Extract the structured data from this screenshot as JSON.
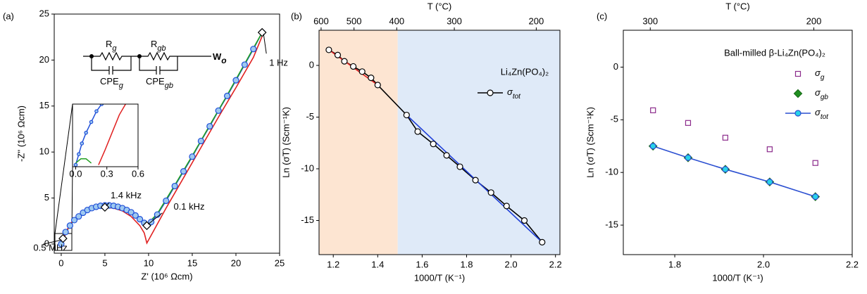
{
  "chart_data": [
    {
      "type": "scatter",
      "panel_label": "(a)",
      "x_label": "Z' (10⁶ Ωcm)",
      "y_label": "-Z'' (10⁶ Ωcm)",
      "xlim": [
        -0.8,
        25
      ],
      "ylim": [
        -1,
        25
      ],
      "xticks": [
        0,
        5,
        10,
        15,
        20,
        25
      ],
      "yticks": [
        0,
        5,
        10,
        15,
        20,
        25
      ],
      "circuit": [
        {
          "main": "R",
          "sub": "g"
        },
        {
          "main": "CPE",
          "sub": "g"
        },
        {
          "main": "R",
          "sub": "gb"
        },
        {
          "main": "CPE",
          "sub": "gb"
        },
        {
          "main": "W",
          "sub": "o"
        }
      ],
      "series": [
        {
          "color": "#1f4fd8",
          "fill": "#9ec9f0",
          "marker": "circle",
          "line": true,
          "x": [
            0,
            0.2,
            0.5,
            1,
            1.5,
            2,
            2.5,
            3,
            3.5,
            4,
            4.5,
            5,
            5.5,
            6,
            6.5,
            7,
            7.5,
            8,
            8.5,
            9,
            9.5,
            9.8,
            10.3,
            11,
            12,
            13,
            14,
            15,
            16,
            17,
            18,
            19,
            20,
            21,
            22,
            23
          ],
          "y": [
            0,
            0.6,
            1.3,
            2.0,
            2.6,
            3.0,
            3.4,
            3.7,
            3.9,
            4.05,
            4.15,
            4.2,
            4.2,
            4.15,
            4.05,
            3.9,
            3.7,
            3.45,
            3.1,
            2.7,
            2.3,
            2.0,
            2.4,
            3.2,
            4.7,
            6.3,
            7.9,
            9.5,
            11.2,
            12.8,
            14.5,
            16.1,
            17.8,
            19.5,
            21.2,
            23
          ]
        },
        {
          "color": "#22a022",
          "marker": "none",
          "line": true,
          "x": [
            0,
            1,
            2,
            3,
            4,
            5,
            6,
            7,
            8,
            9,
            9.8,
            11,
            13,
            15,
            17,
            19,
            21,
            23
          ],
          "y": [
            0,
            2.1,
            3.1,
            3.8,
            4.1,
            4.25,
            4.15,
            3.9,
            3.4,
            2.7,
            2.1,
            3.3,
            6.4,
            9.6,
            12.9,
            16.2,
            19.6,
            23
          ]
        },
        {
          "color": "#e02020",
          "marker": "none",
          "line": true,
          "x": [
            0,
            1,
            2,
            3,
            4,
            5,
            6,
            7,
            8,
            9,
            9.5,
            9.8,
            10.5,
            12,
            14,
            16,
            18,
            20,
            22,
            23
          ],
          "y": [
            0,
            2.2,
            3.1,
            3.6,
            3.9,
            4.0,
            3.9,
            3.6,
            3.0,
            2.0,
            1.2,
            0.1,
            1.3,
            3.9,
            7.2,
            10.5,
            13.8,
            17.0,
            20.3,
            22.6
          ]
        },
        {
          "color": "#000000",
          "fill": "#ffffff",
          "marker": "diamond",
          "line": false,
          "x": [
            0.2,
            5,
            9.8,
            23
          ],
          "y": [
            0.6,
            4,
            2,
            23
          ],
          "labels": [
            "0.5 MHz",
            "1.4 kHz",
            "0.1 kHz",
            "1 Hz"
          ]
        }
      ],
      "inset": {
        "xlim": [
          -0.03,
          0.6
        ],
        "ylim": [
          -0.05,
          1.7
        ],
        "xticks": [
          {
            "value": 0,
            "label": "0.0"
          },
          0.3,
          0.6
        ],
        "series": [
          {
            "color": "#1f4fd8",
            "fill": "#9ec9f0",
            "marker": "circle",
            "line": true,
            "x": [
              0,
              0.03,
              0.06,
              0.1,
              0.15,
              0.2,
              0.25
            ],
            "y": [
              0,
              0.3,
              0.6,
              0.9,
              1.2,
              1.5,
              1.7
            ]
          },
          {
            "color": "#22a022",
            "marker": "none",
            "line": true,
            "x": [
              0,
              0.05,
              0.1,
              0.15
            ],
            "y": [
              0.05,
              0.17,
              0.17,
              0.05
            ]
          },
          {
            "color": "#e02020",
            "marker": "none",
            "line": true,
            "x": [
              0.22,
              0.28,
              0.35,
              0.42,
              0.48
            ],
            "y": [
              0,
              0.4,
              0.9,
              1.4,
              1.7
            ]
          }
        ]
      }
    },
    {
      "type": "line",
      "panel_label": "(b)",
      "x_label": "1000/T (K⁻¹)",
      "y_label": "Ln (σT) (Scm⁻¹K)",
      "xlim": [
        1.136,
        2.22
      ],
      "ylim": [
        -18.3,
        3.4
      ],
      "xticks": [
        1.2,
        1.4,
        1.6,
        1.8,
        {
          "value": 2,
          "label": "2.0"
        },
        2.2
      ],
      "yticks": [
        -15,
        -10,
        -5,
        0
      ],
      "top_axis": {
        "label": "T (°C)",
        "ticks": [
          600,
          500,
          400,
          300,
          200
        ]
      },
      "regions": [
        {
          "from": 1.136,
          "to": 1.49,
          "color": "#fde5d2"
        },
        {
          "from": 1.49,
          "to": 2.22,
          "color": "#dfeaf8"
        }
      ],
      "annotation": "Li₄Zn(PO₄)₂",
      "legend": "upper right",
      "series": [
        {
          "name": "σtot",
          "color": "#000000",
          "fill": "#ffffff",
          "marker": "circle",
          "line": true,
          "x": [
            1.18,
            1.22,
            1.25,
            1.29,
            1.33,
            1.37,
            1.4,
            1.53,
            1.58,
            1.65,
            1.71,
            1.77,
            1.84,
            1.91,
            1.98,
            2.06,
            2.14
          ],
          "y": [
            1.5,
            1.0,
            0.4,
            -0.1,
            -0.6,
            -1.2,
            -1.9,
            -4.8,
            -6.4,
            -7.6,
            -8.7,
            -9.8,
            -11.1,
            -12.3,
            -13.6,
            -15.0,
            -17.1
          ]
        },
        {
          "color": "#e02020",
          "marker": "none",
          "line": true,
          "x": [
            1.18,
            1.4
          ],
          "y": [
            1.5,
            -1.9
          ]
        },
        {
          "color": "#1f3fd8",
          "marker": "none",
          "line": true,
          "x": [
            1.53,
            2.14
          ],
          "y": [
            -4.8,
            -17.1
          ]
        }
      ]
    },
    {
      "type": "scatter",
      "panel_label": "(c)",
      "x_label": "1000/T (K⁻¹)",
      "y_label": "Ln (σT) (Scm⁻¹K)",
      "xlim": [
        1.684,
        2.2
      ],
      "ylim": [
        -17.8,
        3.5
      ],
      "xticks": [
        1.8,
        {
          "value": 2,
          "label": "2.0"
        },
        2.2
      ],
      "yticks": [
        -15,
        -10,
        -5,
        0
      ],
      "top_axis": {
        "label": "T (°C)",
        "ticks": [
          300,
          200
        ]
      },
      "annotation": "Ball-milled β-Li₄Zn(PO₄)₂",
      "legend": "right",
      "series": [
        {
          "name": "σg",
          "color": "#8b2a8b",
          "fill": "#ffffff",
          "marker": "square",
          "line": false,
          "x": [
            1.751,
            1.83,
            1.914,
            2.014,
            2.117
          ],
          "y": [
            -4.1,
            -5.3,
            -6.7,
            -7.8,
            -9.1
          ]
        },
        {
          "name": "σgb",
          "color": "#1c6e1c",
          "fill": "#1f8f1f",
          "marker": "diamond",
          "line": false,
          "x": [
            1.751,
            1.83,
            1.914,
            2.014,
            2.117
          ],
          "y": [
            -7.5,
            -8.6,
            -9.7,
            -10.9,
            -12.3
          ]
        },
        {
          "name": "σtot",
          "color": "#2b4fd1",
          "fill": "#27d3e8",
          "marker": "circle",
          "line": true,
          "x": [
            1.751,
            1.83,
            1.914,
            2.014,
            2.117
          ],
          "y": [
            -7.5,
            -8.6,
            -9.7,
            -10.9,
            -12.3
          ]
        }
      ]
    }
  ]
}
